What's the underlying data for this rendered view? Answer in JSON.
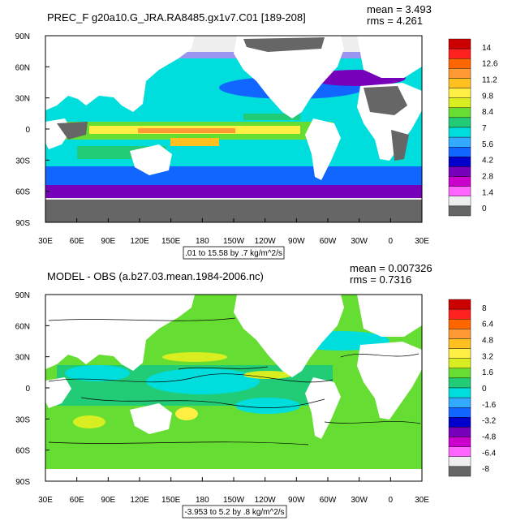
{
  "chart_data": [
    {
      "type": "heatmap",
      "title": "PREC_F g20a10.G_JRA.RA8485.gx1v7.C01 [189-208]",
      "stats": [
        "mean = 3.493",
        "rms = 4.261"
      ],
      "x_ticks": [
        "30E",
        "60E",
        "90E",
        "120E",
        "150E",
        "180",
        "150W",
        "120W",
        "90W",
        "60W",
        "30W",
        "0",
        "30E"
      ],
      "y_ticks": [
        "90N",
        "60N",
        "30N",
        "0",
        "30S",
        "60S",
        "90S"
      ],
      "xlim": [
        30,
        390
      ],
      "ylim": [
        -90,
        90
      ],
      "range_note": ".01 to 15.58 by .7 kg/m^2/s",
      "colorbar_labels": [
        "14",
        "12.6",
        "11.2",
        "9.8",
        "8.4",
        "7",
        "5.6",
        "4.2",
        "2.8",
        "1.4",
        "0"
      ],
      "colorbar_colors": [
        "#cc0000",
        "#ff2020",
        "#ff6600",
        "#ff9933",
        "#ffc020",
        "#ffee44",
        "#d8ee20",
        "#66dd33",
        "#22cc77",
        "#00dddd",
        "#33aaff",
        "#1166ff",
        "#0000cc",
        "#7700bb",
        "#cc00cc",
        "#ff66ff",
        "#eeeeee",
        "#666666"
      ]
    },
    {
      "type": "heatmap",
      "title": "MODEL - OBS (a.b27.03.mean.1984-2006.nc)",
      "stats": [
        "mean = 0.007326",
        "rms = 0.7316"
      ],
      "x_ticks": [
        "30E",
        "60E",
        "90E",
        "120E",
        "150E",
        "180",
        "150W",
        "120W",
        "90W",
        "60W",
        "30W",
        "0",
        "30E"
      ],
      "y_ticks": [
        "90N",
        "60N",
        "30N",
        "0",
        "30S",
        "60S",
        "90S"
      ],
      "xlim": [
        30,
        390
      ],
      "ylim": [
        -90,
        90
      ],
      "range_note": "-3.953 to 5.2 by .8 kg/m^2/s",
      "colorbar_labels": [
        "8",
        "6.4",
        "4.8",
        "3.2",
        "1.6",
        "0",
        "-1.6",
        "-3.2",
        "-4.8",
        "-6.4",
        "-8"
      ],
      "colorbar_colors": [
        "#cc0000",
        "#ff2020",
        "#ff6600",
        "#ff9933",
        "#ffc020",
        "#ffee44",
        "#d8ee20",
        "#66dd33",
        "#22cc77",
        "#00dddd",
        "#33aaff",
        "#1166ff",
        "#0000cc",
        "#7700bb",
        "#cc00cc",
        "#ff66ff",
        "#eeeeee",
        "#666666"
      ]
    }
  ]
}
